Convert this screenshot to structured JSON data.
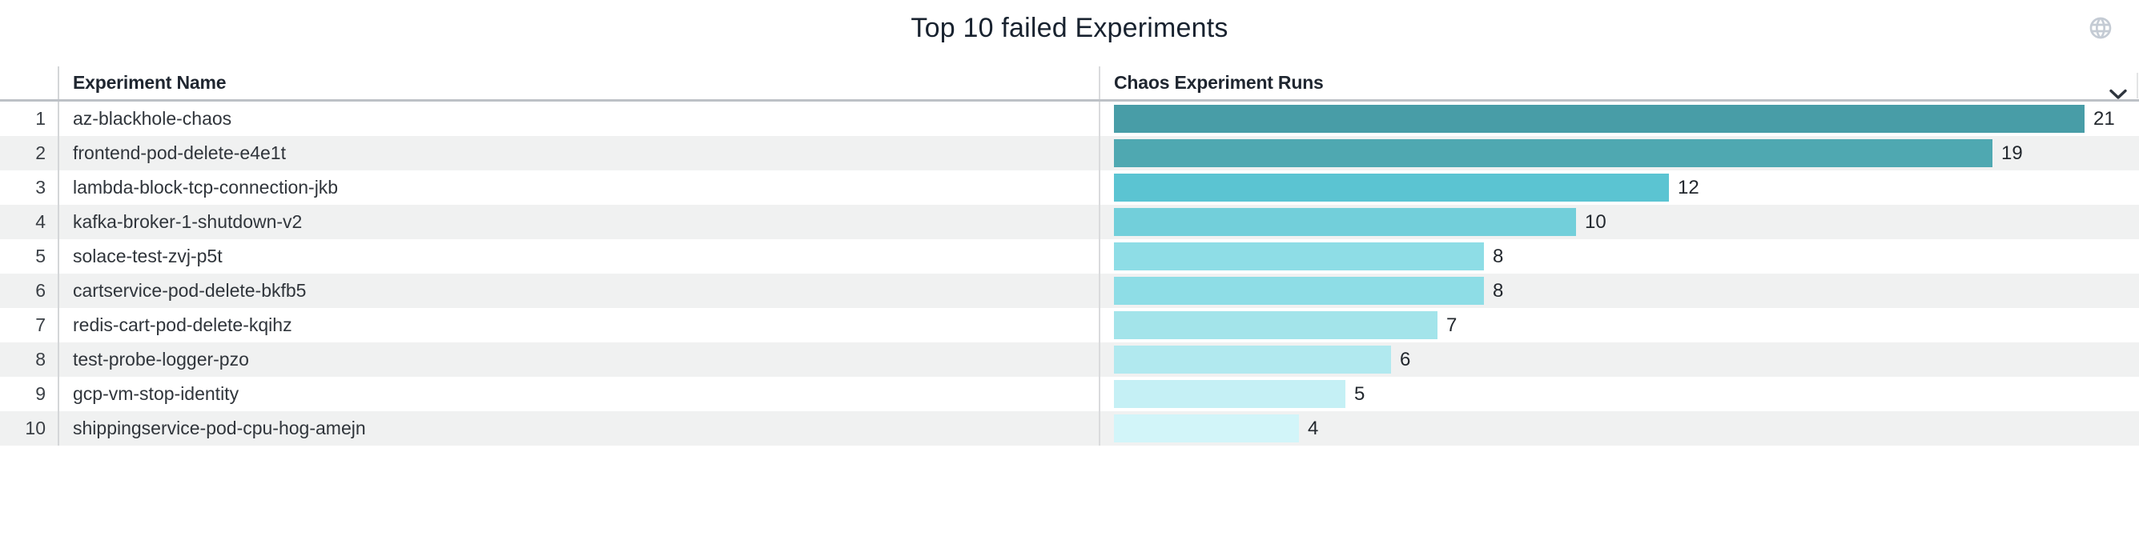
{
  "panel": {
    "title": "Top 10 failed Experiments",
    "icons": {
      "top_right": "globe-icon",
      "runs_header": "chevron-down-icon"
    }
  },
  "table": {
    "columns": {
      "name_header": "Experiment Name",
      "runs_header": "Chaos Experiment Runs"
    },
    "rows": [
      {
        "rank": "1",
        "name": "az-blackhole-chaos",
        "runs": 21,
        "color": "#489da7"
      },
      {
        "rank": "2",
        "name": "frontend-pod-delete-e4e1t",
        "runs": 19,
        "color": "#4fa8b1"
      },
      {
        "rank": "3",
        "name": "lambda-block-tcp-connection-jkb",
        "runs": 12,
        "color": "#5bc4d2"
      },
      {
        "rank": "4",
        "name": "kafka-broker-1-shutdown-v2",
        "runs": 10,
        "color": "#72cfda"
      },
      {
        "rank": "5",
        "name": "solace-test-zvj-p5t",
        "runs": 8,
        "color": "#8edde6"
      },
      {
        "rank": "6",
        "name": "cartservice-pod-delete-bkfb5",
        "runs": 8,
        "color": "#8edde6"
      },
      {
        "rank": "7",
        "name": "redis-cart-pod-delete-kqihz",
        "runs": 7,
        "color": "#a3e4ea"
      },
      {
        "rank": "8",
        "name": "test-probe-logger-pzo",
        "runs": 6,
        "color": "#b1e9ef"
      },
      {
        "rank": "9",
        "name": "gcp-vm-stop-identity",
        "runs": 5,
        "color": "#c5f0f5"
      },
      {
        "rank": "10",
        "name": "shippingservice-pod-cpu-hog-amejn",
        "runs": 4,
        "color": "#d2f5f9"
      }
    ]
  },
  "colors": {
    "stripe": "#f0f1f1",
    "header_border": "#bdc1c6",
    "column_separator": "#d4d6d8",
    "title_text": "#18222f",
    "globe_icon": "#c4cbd4",
    "chevron_icon": "#2e353e"
  },
  "chart_data": {
    "type": "bar",
    "orientation": "horizontal",
    "title": "Top 10 failed Experiments",
    "series_label": "Chaos Experiment Runs",
    "categories": [
      "az-blackhole-chaos",
      "frontend-pod-delete-e4e1t",
      "lambda-block-tcp-connection-jkb",
      "kafka-broker-1-shutdown-v2",
      "solace-test-zvj-p5t",
      "cartservice-pod-delete-bkfb5",
      "redis-cart-pod-delete-kqihz",
      "test-probe-logger-pzo",
      "gcp-vm-stop-identity",
      "shippingservice-pod-cpu-hog-amejn"
    ],
    "values": [
      21,
      19,
      12,
      10,
      8,
      8,
      7,
      6,
      5,
      4
    ],
    "value_labels_shown": true,
    "xlim": [
      0,
      22
    ],
    "grid": false,
    "legend": false,
    "bar_colors": [
      "#489da7",
      "#4fa8b1",
      "#5bc4d2",
      "#72cfda",
      "#8edde6",
      "#8edde6",
      "#a3e4ea",
      "#b1e9ef",
      "#c5f0f5",
      "#d2f5f9"
    ]
  }
}
